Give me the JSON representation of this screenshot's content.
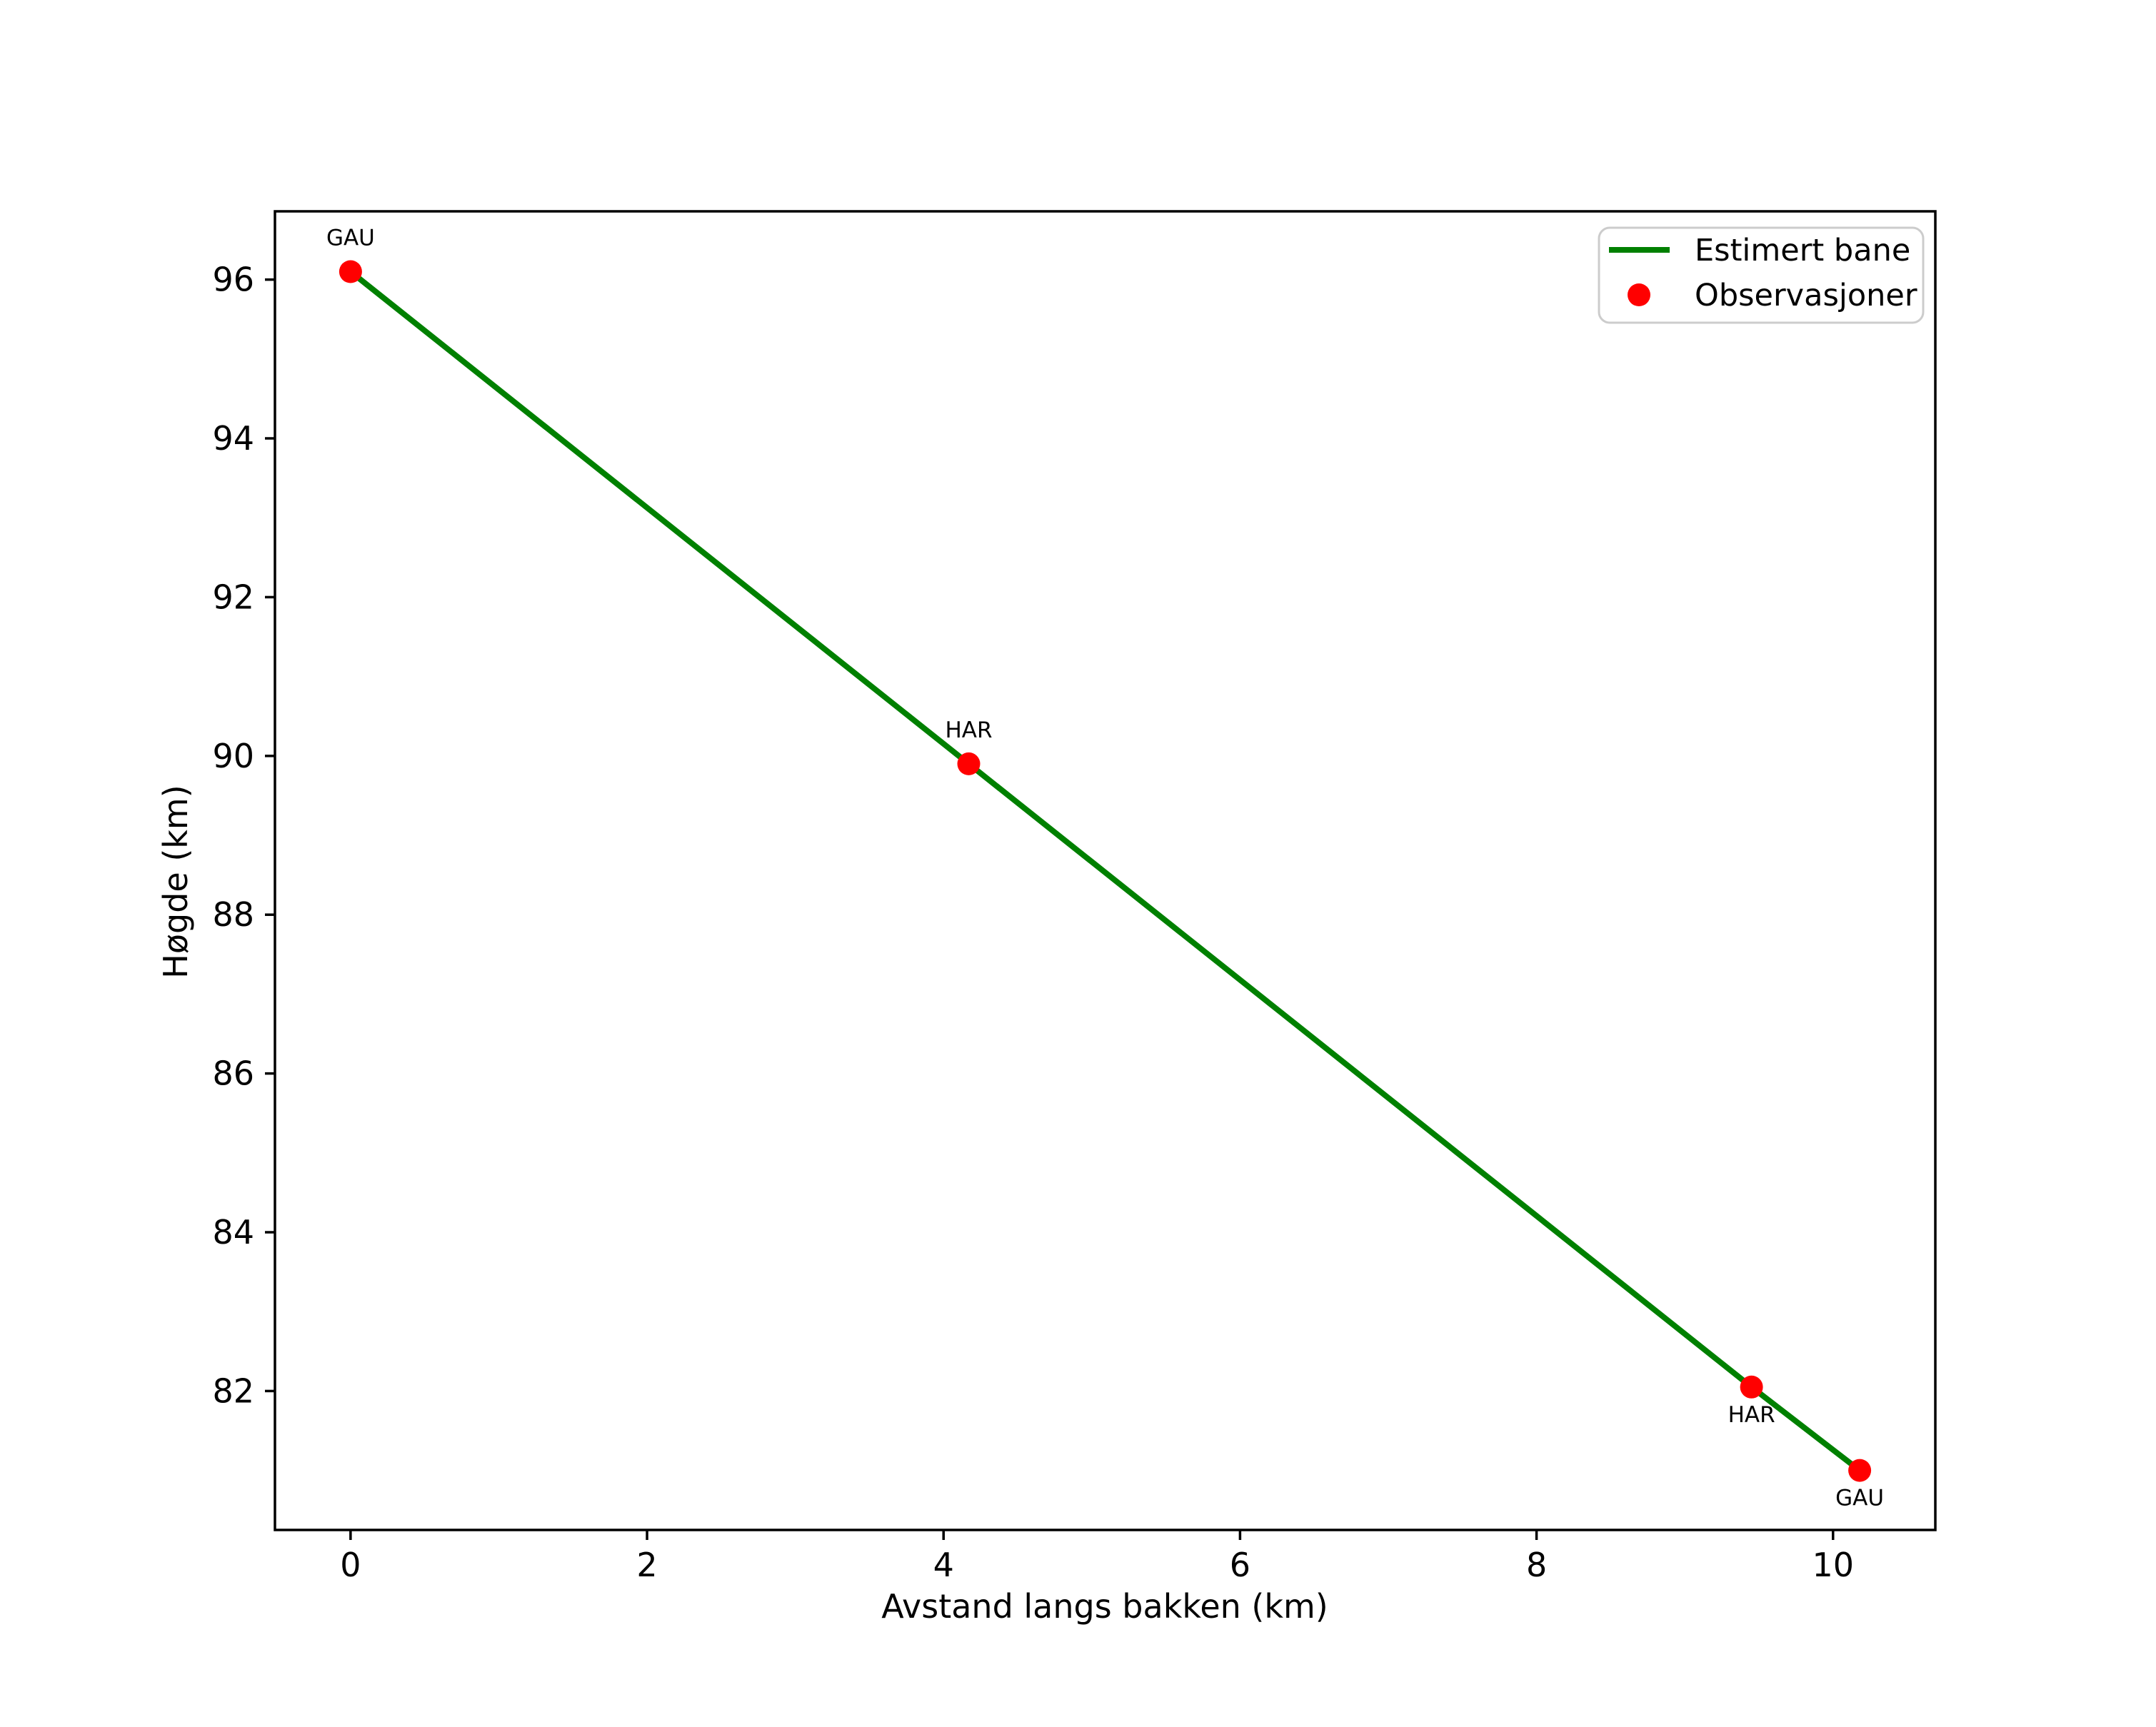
{
  "chart_data": {
    "type": "line",
    "xlabel": "Avstand langs bakken (km)",
    "ylabel": "Høgde (km)",
    "xlim": [
      -0.51,
      10.69
    ],
    "ylim": [
      80.25,
      96.86
    ],
    "xticks": [
      0,
      2,
      4,
      6,
      8,
      10
    ],
    "yticks": [
      82,
      84,
      86,
      88,
      90,
      92,
      94,
      96
    ],
    "grid": false,
    "legend": {
      "position": "upper right",
      "entries": [
        {
          "label": "Estimert bane",
          "type": "line",
          "color": "#008000"
        },
        {
          "label": "Observasjoner",
          "type": "marker",
          "color": "#ff0000"
        }
      ]
    },
    "series": [
      {
        "name": "Estimert bane",
        "type": "line",
        "color": "#008000",
        "x": [
          0,
          4.17,
          9.45,
          10.18
        ],
        "y": [
          96.1,
          89.9,
          82.05,
          81.0
        ]
      },
      {
        "name": "Observasjoner",
        "type": "scatter",
        "color": "#ff0000",
        "points": [
          {
            "x": 0,
            "y": 96.1,
            "label": "GAU",
            "label_side": "above"
          },
          {
            "x": 4.17,
            "y": 89.9,
            "label": "HAR",
            "label_side": "above"
          },
          {
            "x": 9.45,
            "y": 82.05,
            "label": "HAR",
            "label_side": "below"
          },
          {
            "x": 10.18,
            "y": 81.0,
            "label": "GAU",
            "label_side": "below"
          }
        ]
      }
    ]
  },
  "colors": {
    "line": "#008000",
    "marker": "#ff0000",
    "text": "#000000",
    "spine": "#000000",
    "background": "#ffffff",
    "legend_border": "#cccccc"
  }
}
